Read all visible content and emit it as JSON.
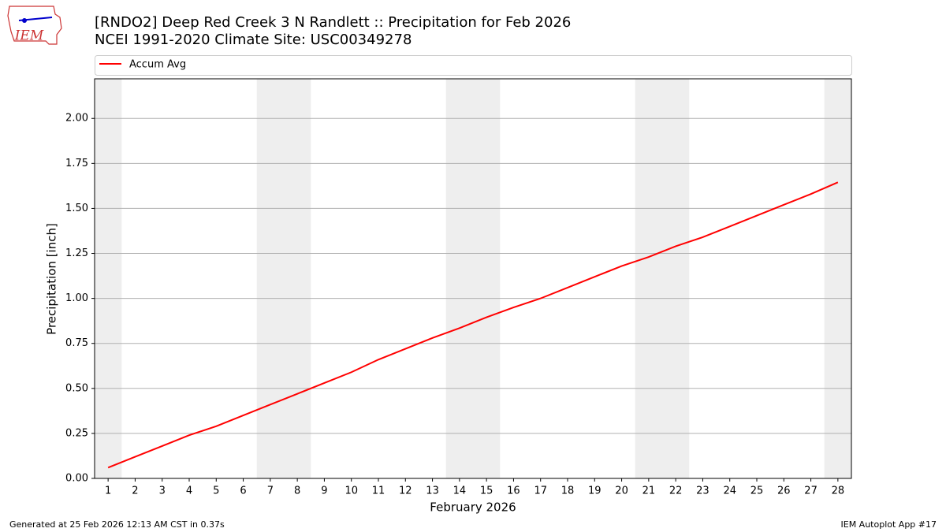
{
  "logo": "IEM",
  "footer": {
    "left": "Generated at 25 Feb 2026 12:13 AM CST in 0.37s",
    "right": "IEM Autoplot App #17"
  },
  "chart_data": {
    "type": "line",
    "title": "[RNDO2] Deep Red Creek 3 N Randlett :: Precipitation for Feb 2026",
    "subtitle": "NCEI 1991-2020 Climate Site: USC00349278",
    "xlabel": "February 2026",
    "ylabel": "Precipitation [inch]",
    "x": [
      1,
      2,
      3,
      4,
      5,
      6,
      7,
      8,
      9,
      10,
      11,
      12,
      13,
      14,
      15,
      16,
      17,
      18,
      19,
      20,
      21,
      22,
      23,
      24,
      25,
      26,
      27,
      28
    ],
    "series": [
      {
        "name": "Accum Avg",
        "color": "#ff0000",
        "values": [
          0.06,
          0.12,
          0.18,
          0.24,
          0.29,
          0.35,
          0.41,
          0.47,
          0.53,
          0.59,
          0.66,
          0.72,
          0.78,
          0.835,
          0.895,
          0.95,
          1.0,
          1.06,
          1.12,
          1.18,
          1.23,
          1.29,
          1.34,
          1.4,
          1.46,
          1.52,
          1.58,
          1.645
        ]
      }
    ],
    "xlim": [
      0.5,
      28.5
    ],
    "xticks": [
      1,
      2,
      3,
      4,
      5,
      6,
      7,
      8,
      9,
      10,
      11,
      12,
      13,
      14,
      15,
      16,
      17,
      18,
      19,
      20,
      21,
      22,
      23,
      24,
      25,
      26,
      27,
      28
    ],
    "ylim": [
      0,
      2.22
    ],
    "yticks": [
      {
        "value": 0,
        "label": "0.00"
      },
      {
        "value": 0.25,
        "label": "0.25"
      },
      {
        "value": 0.5,
        "label": "0.50"
      },
      {
        "value": 0.75,
        "label": "0.75"
      },
      {
        "value": 1,
        "label": "1.00"
      },
      {
        "value": 1.25,
        "label": "1.25"
      },
      {
        "value": 1.5,
        "label": "1.50"
      },
      {
        "value": 1.75,
        "label": "1.75"
      },
      {
        "value": 2,
        "label": "2.00"
      }
    ],
    "shaded_days": [
      1,
      7,
      8,
      14,
      15,
      21,
      22,
      28
    ],
    "shade_color": "#eeeeee",
    "grid": true,
    "legend": "top"
  }
}
